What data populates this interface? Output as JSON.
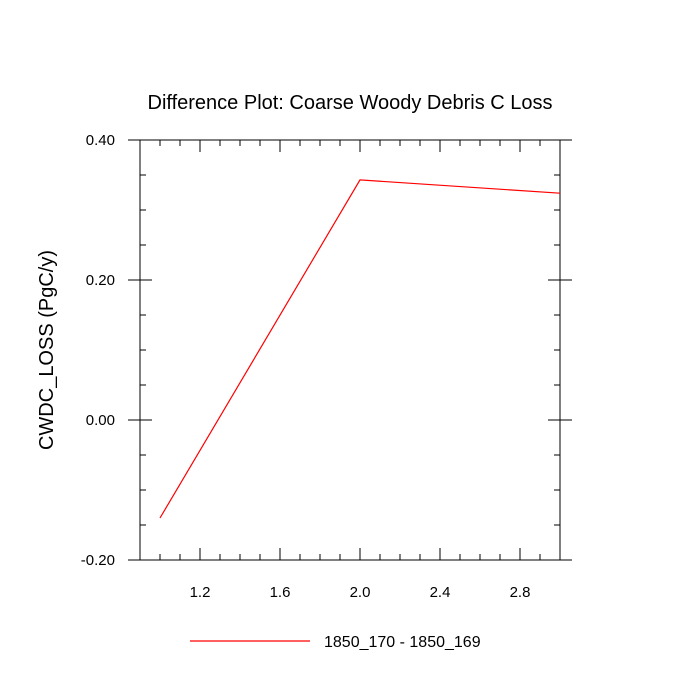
{
  "chart_data": {
    "type": "line",
    "title": "Difference Plot: Coarse Woody Debris C Loss",
    "xlabel": "",
    "ylabel": "CWDC_LOSS  (PgC/y)",
    "xlim": [
      0.9,
      3.0
    ],
    "ylim": [
      -0.2,
      0.4
    ],
    "x_ticks": [
      1.2,
      1.6,
      2.0,
      2.4,
      2.8
    ],
    "x_tick_labels": [
      "1.2",
      "1.6",
      "2.0",
      "2.4",
      "2.8"
    ],
    "y_ticks": [
      -0.2,
      0.0,
      0.2,
      0.4
    ],
    "y_tick_labels": [
      "-0.20",
      "0.00",
      "0.20",
      "0.40"
    ],
    "grid": false,
    "legend_position": "bottom",
    "series": [
      {
        "name": "1850_170 - 1850_169",
        "color": "#ff0000",
        "x": [
          1.0,
          2.0,
          3.0
        ],
        "y": [
          -0.14,
          0.343,
          0.324
        ]
      }
    ]
  }
}
